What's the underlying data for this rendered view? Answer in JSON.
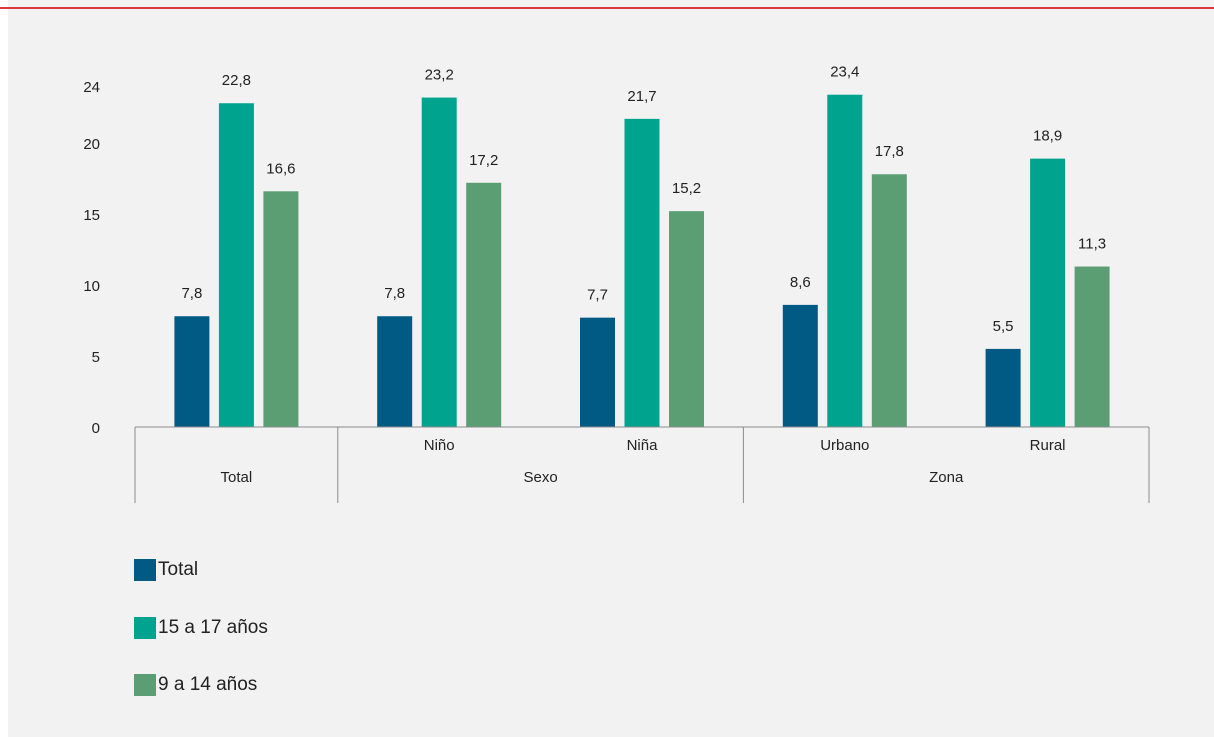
{
  "chart_data": {
    "type": "bar",
    "title": "",
    "xlabel": "",
    "ylabel": "",
    "ylim": [
      0,
      24
    ],
    "yticks": [
      {
        "value": 0,
        "label": "0"
      },
      {
        "value": 5,
        "label": "5"
      },
      {
        "value": 10,
        "label": "10"
      },
      {
        "value": 15,
        "label": "15"
      },
      {
        "value": 20,
        "label": "20"
      },
      {
        "value": 24,
        "label": "24"
      }
    ],
    "grid": false,
    "legend_position": "bottom-left",
    "categories": [
      "Total",
      "Niño",
      "Niña",
      "Urbano",
      "Rural"
    ],
    "category_axis_labels": [
      "",
      "Niño",
      "Niña",
      "Urbano",
      "Rural"
    ],
    "groups": [
      {
        "label": "Total",
        "span": 1
      },
      {
        "label": "Sexo",
        "span": 2
      },
      {
        "label": "Zona",
        "span": 2
      }
    ],
    "series": [
      {
        "name": "Total",
        "color": "#005a84",
        "values": [
          7.8,
          7.8,
          7.7,
          8.6,
          5.5
        ],
        "labels": [
          "7,8",
          "7,8",
          "7,7",
          "8,6",
          "5,5"
        ]
      },
      {
        "name": "15 a 17 años",
        "color": "#00a38e",
        "values": [
          22.8,
          23.2,
          21.7,
          23.4,
          18.9
        ],
        "labels": [
          "22,8",
          "23,2",
          "21,7",
          "23,4",
          "18,9"
        ]
      },
      {
        "name": "9 a 14 años",
        "color": "#5c9e73",
        "values": [
          16.6,
          17.2,
          15.2,
          17.8,
          11.3
        ],
        "labels": [
          "16,6",
          "17,2",
          "15,2",
          "17,8",
          "11,3"
        ]
      }
    ]
  }
}
